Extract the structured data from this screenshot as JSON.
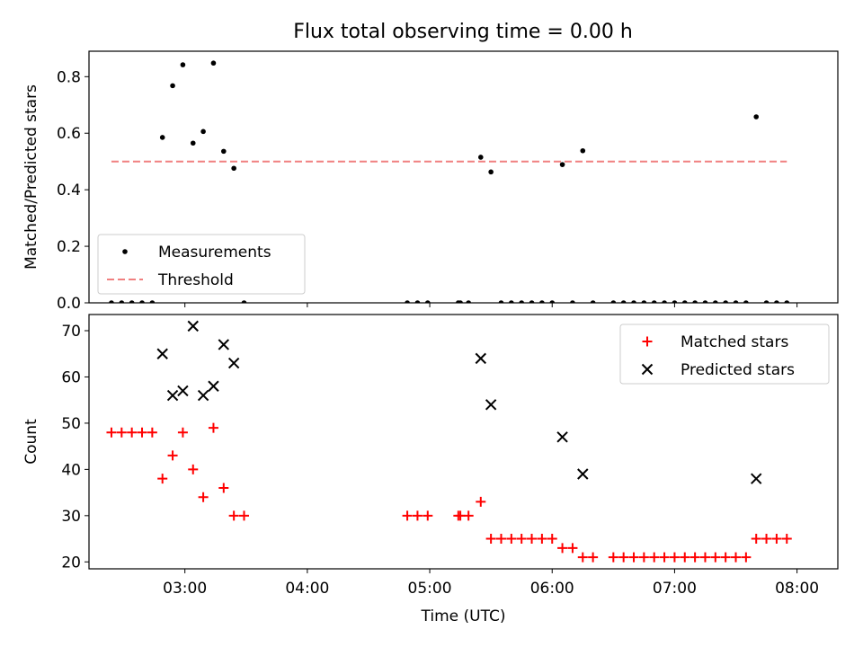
{
  "figure_title": "Flux total observing time = 0.00 h",
  "chart_data": [
    {
      "type": "scatter",
      "panel": "top",
      "ylabel": "Matched/Predicted stars",
      "xlabel": "",
      "xlim": [
        "02:13",
        "08:20"
      ],
      "ylim": [
        0,
        0.89
      ],
      "yticks": [
        0.0,
        0.2,
        0.4,
        0.6,
        0.8
      ],
      "ytick_labels": [
        "0.0",
        "0.2",
        "0.4",
        "0.6",
        "0.8"
      ],
      "xticks": [
        "03:00",
        "04:00",
        "05:00",
        "06:00",
        "07:00",
        "08:00"
      ],
      "grid": false,
      "legend_position": "lower-left",
      "series": [
        {
          "name": "Measurements",
          "kind": "scatter",
          "marker": "dot",
          "color": "#000000",
          "points": [
            [
              "02:24",
              0
            ],
            [
              "02:29",
              0
            ],
            [
              "02:34",
              0
            ],
            [
              "02:39",
              0
            ],
            [
              "02:44",
              0
            ],
            [
              "02:49",
              0.585
            ],
            [
              "02:54",
              0.768
            ],
            [
              "02:59",
              0.842
            ],
            [
              "03:04",
              0.565
            ],
            [
              "03:09",
              0.606
            ],
            [
              "03:14",
              0.848
            ],
            [
              "03:19",
              0.536
            ],
            [
              "03:24",
              0.476
            ],
            [
              "03:29",
              0
            ],
            [
              "04:49",
              0
            ],
            [
              "04:54",
              0
            ],
            [
              "04:59",
              0
            ],
            [
              "05:14",
              0
            ],
            [
              "05:15",
              0
            ],
            [
              "05:19",
              0
            ],
            [
              "05:25",
              0.515
            ],
            [
              "05:30",
              0.463
            ],
            [
              "05:35",
              0
            ],
            [
              "05:40",
              0
            ],
            [
              "05:45",
              0
            ],
            [
              "05:50",
              0
            ],
            [
              "05:55",
              0
            ],
            [
              "06:00",
              0
            ],
            [
              "06:05",
              0.489
            ],
            [
              "06:10",
              0
            ],
            [
              "06:15",
              0.538
            ],
            [
              "06:20",
              0
            ],
            [
              "06:30",
              0
            ],
            [
              "06:35",
              0
            ],
            [
              "06:40",
              0
            ],
            [
              "06:45",
              0
            ],
            [
              "06:50",
              0
            ],
            [
              "06:55",
              0
            ],
            [
              "07:00",
              0
            ],
            [
              "07:05",
              0
            ],
            [
              "07:10",
              0
            ],
            [
              "07:15",
              0
            ],
            [
              "07:20",
              0
            ],
            [
              "07:25",
              0
            ],
            [
              "07:30",
              0
            ],
            [
              "07:35",
              0
            ],
            [
              "07:40",
              0.658
            ],
            [
              "07:45",
              0
            ],
            [
              "07:50",
              0
            ],
            [
              "07:55",
              0
            ]
          ]
        },
        {
          "name": "Threshold",
          "kind": "hline",
          "color": "#f08080",
          "dash": true,
          "y": 0.5,
          "x_range": [
            "02:24",
            "07:55"
          ]
        }
      ]
    },
    {
      "type": "scatter",
      "panel": "bottom",
      "ylabel": "Count",
      "xlabel": "Time (UTC)",
      "xlim": [
        "02:13",
        "08:20"
      ],
      "ylim": [
        18.5,
        73.5
      ],
      "yticks": [
        20,
        30,
        40,
        50,
        60,
        70
      ],
      "ytick_labels": [
        "20",
        "30",
        "40",
        "50",
        "60",
        "70"
      ],
      "xticks": [
        "03:00",
        "04:00",
        "05:00",
        "06:00",
        "07:00",
        "08:00"
      ],
      "grid": false,
      "legend_position": "upper-right",
      "series": [
        {
          "name": "Matched stars",
          "kind": "scatter",
          "marker": "plus",
          "color": "#ff0000",
          "points": [
            [
              "02:24",
              48
            ],
            [
              "02:29",
              48
            ],
            [
              "02:34",
              48
            ],
            [
              "02:39",
              48
            ],
            [
              "02:44",
              48
            ],
            [
              "02:49",
              38
            ],
            [
              "02:54",
              43
            ],
            [
              "02:59",
              48
            ],
            [
              "03:04",
              40
            ],
            [
              "03:09",
              34
            ],
            [
              "03:14",
              49
            ],
            [
              "03:19",
              36
            ],
            [
              "03:24",
              30
            ],
            [
              "03:29",
              30
            ],
            [
              "04:49",
              30
            ],
            [
              "04:54",
              30
            ],
            [
              "04:59",
              30
            ],
            [
              "05:14",
              30
            ],
            [
              "05:15",
              30
            ],
            [
              "05:19",
              30
            ],
            [
              "05:25",
              33
            ],
            [
              "05:30",
              25
            ],
            [
              "05:35",
              25
            ],
            [
              "05:40",
              25
            ],
            [
              "05:45",
              25
            ],
            [
              "05:50",
              25
            ],
            [
              "05:55",
              25
            ],
            [
              "06:00",
              25
            ],
            [
              "06:05",
              23
            ],
            [
              "06:10",
              23
            ],
            [
              "06:15",
              21
            ],
            [
              "06:20",
              21
            ],
            [
              "06:30",
              21
            ],
            [
              "06:35",
              21
            ],
            [
              "06:40",
              21
            ],
            [
              "06:45",
              21
            ],
            [
              "06:50",
              21
            ],
            [
              "06:55",
              21
            ],
            [
              "07:00",
              21
            ],
            [
              "07:05",
              21
            ],
            [
              "07:10",
              21
            ],
            [
              "07:15",
              21
            ],
            [
              "07:20",
              21
            ],
            [
              "07:25",
              21
            ],
            [
              "07:30",
              21
            ],
            [
              "07:35",
              21
            ],
            [
              "07:40",
              25
            ],
            [
              "07:45",
              25
            ],
            [
              "07:50",
              25
            ],
            [
              "07:55",
              25
            ]
          ]
        },
        {
          "name": "Predicted stars",
          "kind": "scatter",
          "marker": "x",
          "color": "#000000",
          "points": [
            [
              "02:49",
              65
            ],
            [
              "02:54",
              56
            ],
            [
              "02:59",
              57
            ],
            [
              "03:04",
              71
            ],
            [
              "03:09",
              56
            ],
            [
              "03:14",
              58
            ],
            [
              "03:19",
              67
            ],
            [
              "03:24",
              63
            ],
            [
              "05:25",
              64
            ],
            [
              "05:30",
              54
            ],
            [
              "06:05",
              47
            ],
            [
              "06:15",
              39
            ],
            [
              "07:40",
              38
            ]
          ]
        }
      ]
    }
  ]
}
